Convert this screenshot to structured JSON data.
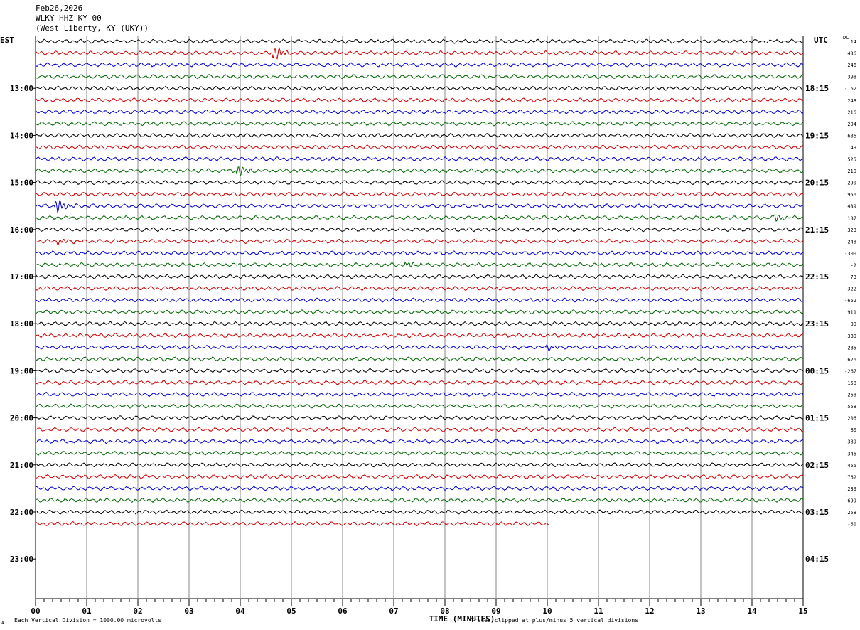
{
  "header": {
    "date": "Feb26,2026",
    "station": "WLKY HHZ KY 00",
    "location": "(West Liberty, KY (UKY))"
  },
  "left_tz": "EST",
  "right_tz": "UTC",
  "dc_label": "DC",
  "footer": {
    "division": "Each Vertical Division = 1000.00 microvolts",
    "clip": "Traces clipped at plus/minus 5 vertical divisions",
    "corner_mark": "A"
  },
  "colors": [
    "#000000",
    "#cc0000",
    "#0000cc",
    "#006600"
  ],
  "chart_data": {
    "type": "line",
    "xlabel": "TIME (MINUTES)",
    "x_ticks": [
      "00",
      "01",
      "02",
      "03",
      "04",
      "05",
      "06",
      "07",
      "08",
      "09",
      "10",
      "11",
      "12",
      "13",
      "14",
      "15"
    ],
    "xlim": [
      0,
      15
    ],
    "left_hour_labels": [
      "13:00",
      "14:00",
      "15:00",
      "16:00",
      "17:00",
      "18:00",
      "19:00",
      "20:00",
      "21:00",
      "22:00",
      "23:00"
    ],
    "right_hour_labels": [
      "18:15",
      "19:15",
      "20:15",
      "21:15",
      "22:15",
      "23:15",
      "00:15",
      "01:15",
      "02:15",
      "03:15",
      "04:15"
    ],
    "trace_count": 42,
    "last_trace_end_minute": 10.05,
    "dc_offsets": [
      "14",
      "436",
      "246",
      "398",
      "-152",
      "248",
      "216",
      "294",
      "686",
      "149",
      "525",
      "210",
      "290",
      "956",
      "439",
      "187",
      "323",
      "248",
      "-300",
      "-2",
      "-73",
      "322",
      "-652",
      "911",
      "-80",
      "-330",
      "-235",
      "626",
      "-267",
      "158",
      "268",
      "558",
      "206",
      "80",
      "389",
      "346",
      "455",
      "762",
      "239",
      "699",
      "258",
      "-60"
    ],
    "events": [
      {
        "trace": 1,
        "minute": 4.7,
        "amp": 8
      },
      {
        "trace": 11,
        "minute": 4.0,
        "amp": 6
      },
      {
        "trace": 14,
        "minute": 0.45,
        "amp": 8
      },
      {
        "trace": 15,
        "minute": 14.5,
        "amp": 4
      },
      {
        "trace": 17,
        "minute": 0.5,
        "amp": 3
      },
      {
        "trace": 19,
        "minute": 7.3,
        "amp": 3
      },
      {
        "trace": 26,
        "minute": 10.05,
        "amp": 3
      }
    ]
  }
}
